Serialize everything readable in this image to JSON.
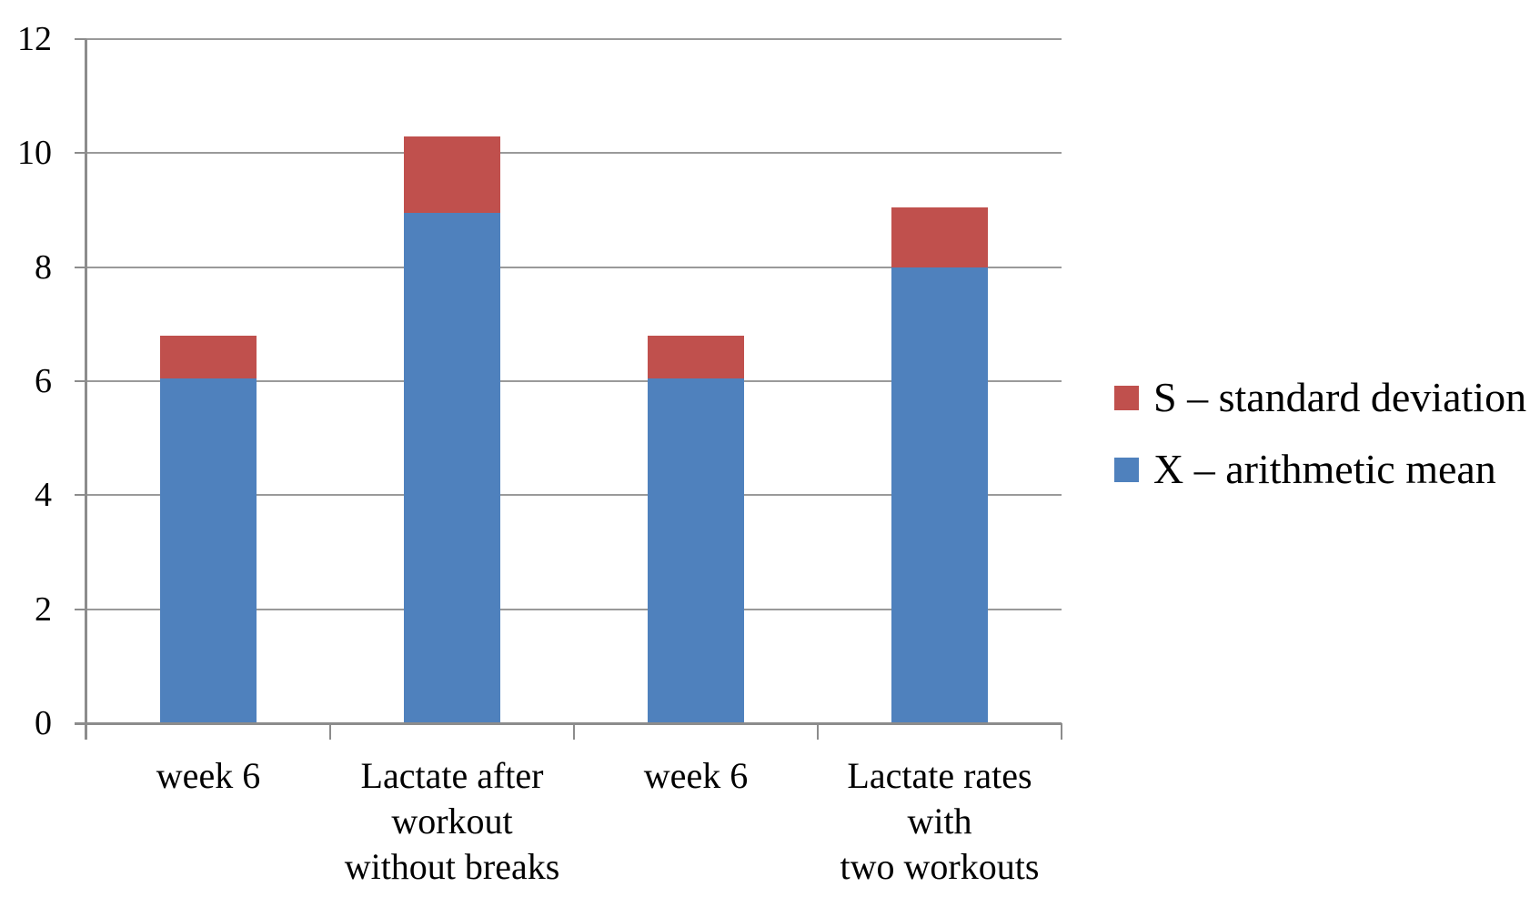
{
  "chart_data": {
    "type": "bar",
    "stacked": true,
    "title": "",
    "xlabel": "",
    "ylabel": "",
    "categories": [
      "week 6",
      "Lactate after\nworkout\nwithout breaks",
      "week 6",
      "Lactate rates\nwith\ntwo workouts"
    ],
    "series": [
      {
        "name": "X – arithmetic mean",
        "color": "#4F81BD",
        "values": [
          6.05,
          8.95,
          6.05,
          8.0
        ]
      },
      {
        "name": "S – standard deviation",
        "color": "#C0504D",
        "values": [
          0.75,
          1.35,
          0.75,
          1.05
        ]
      }
    ],
    "stacked_totals": [
      6.8,
      10.3,
      6.8,
      9.05
    ],
    "ylim": [
      0,
      12
    ],
    "ytick_step": 2,
    "ytick_labels": [
      "0",
      "2",
      "4",
      "6",
      "8",
      "10",
      "12"
    ],
    "grid": true,
    "legend": {
      "position": "right",
      "entries": [
        {
          "label": "S – standard deviation",
          "color": "#C0504D"
        },
        {
          "label": "X – arithmetic mean",
          "color": "#4F81BD"
        }
      ]
    },
    "colors": {
      "grid": "#9a9a9a",
      "axis": "#8c8c8c",
      "text": "#000000",
      "background": "#ffffff"
    }
  }
}
